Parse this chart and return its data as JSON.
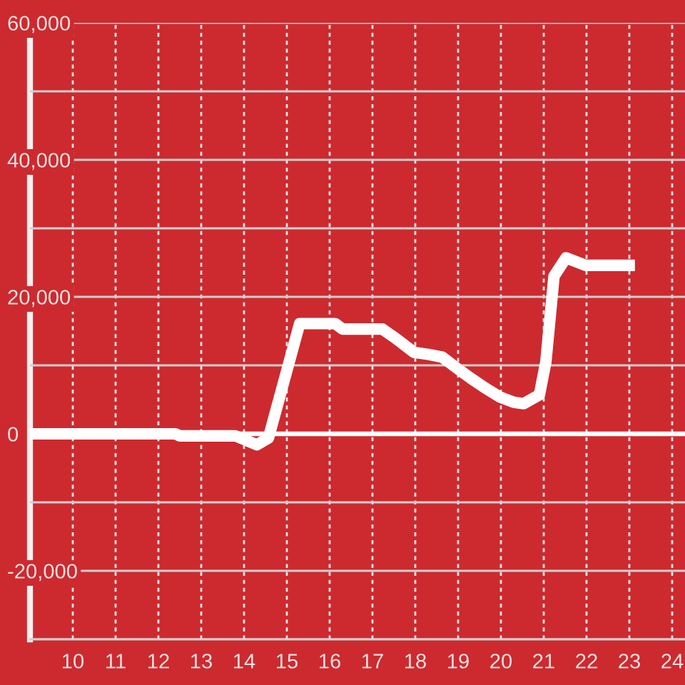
{
  "chart_data": {
    "type": "line",
    "x": [
      9,
      10,
      11,
      12,
      12.4,
      12.5,
      13,
      13.8,
      14.3,
      14.57,
      15.3,
      16.13,
      16.3,
      17.23,
      17.53,
      17.97,
      18.3,
      18.63,
      18.97,
      19.3,
      19.63,
      19.97,
      20.3,
      20.53,
      20.9,
      21.05,
      21.24,
      21.52,
      21.97,
      23.13
    ],
    "series": [
      {
        "color": "#ffffff",
        "values": [
          0,
          0,
          0,
          0,
          0,
          -300,
          -300,
          -300,
          -1600,
          -600,
          16100,
          16100,
          15300,
          15300,
          14000,
          11900,
          11600,
          11200,
          9600,
          8100,
          6700,
          5400,
          4600,
          4400,
          5700,
          10500,
          23000,
          25700,
          24600,
          24600
        ]
      }
    ],
    "xlim": [
      9,
      24.3
    ],
    "xticks": [
      10,
      11,
      12,
      13,
      14,
      15,
      16,
      17,
      18,
      19,
      20,
      21,
      22,
      23,
      24
    ],
    "ylim": [
      -30000,
      60000
    ],
    "yticks": [
      {
        "value": -30000,
        "label": null
      },
      {
        "value": -20000,
        "label": "-20,000"
      },
      {
        "value": -10000,
        "label": null
      },
      0,
      {
        "value": 10000,
        "label": null
      },
      {
        "value": 20000,
        "label": "20,000"
      },
      {
        "value": 30000,
        "label": null
      },
      {
        "value": 40000,
        "label": "40,000"
      },
      {
        "value": 50000,
        "label": null
      },
      {
        "value": 60000,
        "label": "60,000"
      }
    ],
    "grid": true,
    "line_style": "solid",
    "ref_lines": [
      {
        "axis": "y",
        "value": 0,
        "color": "#ffffff"
      }
    ]
  }
}
